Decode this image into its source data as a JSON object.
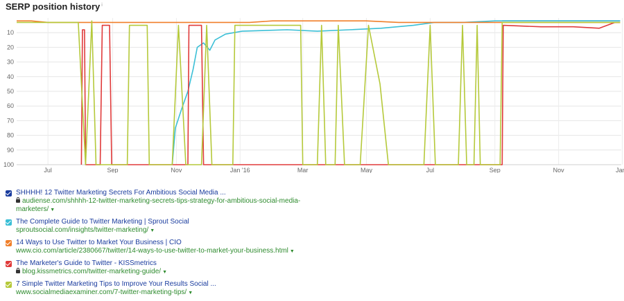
{
  "title": "SERP position history",
  "info_mark": "i",
  "chart_data": {
    "type": "line",
    "ylabel": "",
    "xlabel": "",
    "y_inverted": true,
    "ylim": [
      0,
      100
    ],
    "y_ticks": [
      10,
      20,
      30,
      40,
      50,
      60,
      70,
      80,
      90,
      100
    ],
    "x_range": [
      "2015-06-01",
      "2016-12-31"
    ],
    "x_ticks": [
      {
        "label": "Jul",
        "date": "2015-07-01"
      },
      {
        "label": "Sep",
        "date": "2015-09-01"
      },
      {
        "label": "Nov",
        "date": "2015-11-01"
      },
      {
        "label": "Jan '16",
        "date": "2016-01-01"
      },
      {
        "label": "Mar",
        "date": "2016-03-01"
      },
      {
        "label": "May",
        "date": "2016-05-01"
      },
      {
        "label": "Jul",
        "date": "2016-07-01"
      },
      {
        "label": "Sep",
        "date": "2016-09-01"
      },
      {
        "label": "Nov",
        "date": "2016-11-01"
      },
      {
        "label": "Jan '",
        "date": "2017-01-01"
      }
    ],
    "grid": true,
    "series": [
      {
        "color": "#1a3c9e",
        "points": [
          [
            "2016-09-08",
            2
          ],
          [
            "2016-12-30",
            2
          ]
        ]
      },
      {
        "color": "#3bbfd6",
        "points": [
          [
            "2015-10-28",
            100
          ],
          [
            "2015-10-31",
            75
          ],
          [
            "2015-11-06",
            62
          ],
          [
            "2015-11-12",
            50
          ],
          [
            "2015-11-17",
            35
          ],
          [
            "2015-11-21",
            20
          ],
          [
            "2015-11-27",
            17
          ],
          [
            "2015-12-03",
            22
          ],
          [
            "2015-12-08",
            15
          ],
          [
            "2015-12-18",
            11
          ],
          [
            "2016-01-03",
            9
          ],
          [
            "2016-02-15",
            8
          ],
          [
            "2016-03-15",
            9
          ],
          [
            "2016-04-15",
            8
          ],
          [
            "2016-05-15",
            7
          ],
          [
            "2016-06-15",
            5
          ],
          [
            "2016-07-05",
            3
          ],
          [
            "2016-08-01",
            3
          ],
          [
            "2016-09-01",
            2
          ],
          [
            "2016-12-30",
            2
          ]
        ]
      },
      {
        "color": "#f07f2a",
        "points": [
          [
            "2015-06-01",
            2
          ],
          [
            "2015-06-15",
            2
          ],
          [
            "2015-07-01",
            3
          ],
          [
            "2015-08-01",
            3
          ],
          [
            "2015-09-01",
            3
          ],
          [
            "2015-10-01",
            3
          ],
          [
            "2015-11-01",
            3
          ],
          [
            "2015-12-01",
            3
          ],
          [
            "2016-01-10",
            3
          ],
          [
            "2016-02-01",
            2
          ],
          [
            "2016-03-01",
            2
          ],
          [
            "2016-04-01",
            2
          ],
          [
            "2016-05-01",
            2
          ],
          [
            "2016-06-01",
            3
          ],
          [
            "2016-07-01",
            3
          ],
          [
            "2016-08-01",
            3
          ],
          [
            "2016-09-01",
            3
          ],
          [
            "2016-10-01",
            3
          ],
          [
            "2016-11-01",
            3
          ],
          [
            "2016-12-30",
            3
          ]
        ]
      },
      {
        "color": "#e03a3a",
        "points": [
          [
            "2015-08-02",
            100
          ],
          [
            "2015-08-03",
            8
          ],
          [
            "2015-08-05",
            8
          ],
          [
            "2015-08-06",
            100
          ],
          [
            "2015-08-20",
            100
          ],
          [
            "2015-08-22",
            5
          ],
          [
            "2015-08-29",
            5
          ],
          [
            "2015-08-31",
            100
          ],
          [
            "2015-11-12",
            100
          ],
          [
            "2015-11-13",
            5
          ],
          [
            "2015-11-25",
            5
          ],
          [
            "2015-11-27",
            100
          ],
          [
            "2016-09-08",
            100
          ],
          [
            "2016-09-09",
            5
          ],
          [
            "2016-10-15",
            6
          ],
          [
            "2016-11-15",
            6
          ],
          [
            "2016-12-10",
            7
          ],
          [
            "2016-12-25",
            3
          ],
          [
            "2016-12-30",
            3
          ]
        ]
      },
      {
        "color": "#b5c93a",
        "points": [
          [
            "2015-06-01",
            3
          ],
          [
            "2015-07-30",
            3
          ],
          [
            "2015-08-06",
            100
          ],
          [
            "2015-08-12",
            2
          ],
          [
            "2015-08-16",
            100
          ],
          [
            "2015-09-15",
            100
          ],
          [
            "2015-09-17",
            5
          ],
          [
            "2015-10-04",
            5
          ],
          [
            "2015-10-06",
            100
          ],
          [
            "2015-10-28",
            100
          ],
          [
            "2015-11-03",
            5
          ],
          [
            "2015-11-10",
            100
          ],
          [
            "2015-11-25",
            100
          ],
          [
            "2015-11-30",
            5
          ],
          [
            "2015-12-05",
            100
          ],
          [
            "2015-12-25",
            100
          ],
          [
            "2015-12-27",
            5
          ],
          [
            "2016-02-28",
            5
          ],
          [
            "2016-03-01",
            100
          ],
          [
            "2016-03-15",
            100
          ],
          [
            "2016-03-19",
            5
          ],
          [
            "2016-03-23",
            100
          ],
          [
            "2016-04-01",
            100
          ],
          [
            "2016-04-04",
            5
          ],
          [
            "2016-04-10",
            100
          ],
          [
            "2016-04-25",
            100
          ],
          [
            "2016-05-03",
            5
          ],
          [
            "2016-05-14",
            45
          ],
          [
            "2016-05-22",
            100
          ],
          [
            "2016-06-25",
            100
          ],
          [
            "2016-07-01",
            5
          ],
          [
            "2016-07-06",
            100
          ],
          [
            "2016-07-28",
            100
          ],
          [
            "2016-08-01",
            5
          ],
          [
            "2016-08-05",
            100
          ],
          [
            "2016-08-12",
            100
          ],
          [
            "2016-08-15",
            5
          ],
          [
            "2016-08-18",
            100
          ],
          [
            "2016-09-06",
            100
          ],
          [
            "2016-09-08",
            3
          ],
          [
            "2016-12-30",
            3
          ]
        ]
      }
    ]
  },
  "legend": [
    {
      "color": "#1a3c9e",
      "title": "SHHHH! 12 Twitter Marketing Secrets For Ambitious Social Media ...",
      "secure": true,
      "url_lines": [
        "audiense.com/shhhh-12-twitter-marketing-secrets-tips-strategy-for-ambitious-social-media-",
        "marketers/"
      ]
    },
    {
      "color": "#3bbfd6",
      "title": "The Complete Guide to Twitter Marketing | Sprout Social",
      "secure": false,
      "url_lines": [
        "sproutsocial.com/insights/twitter-marketing/"
      ]
    },
    {
      "color": "#f07f2a",
      "title": "14 Ways to Use Twitter to Market Your Business | CIO",
      "secure": false,
      "url_lines": [
        "www.cio.com/article/2380667/twitter/14-ways-to-use-twitter-to-market-your-business.html"
      ]
    },
    {
      "color": "#e03a3a",
      "title": "The Marketer's Guide to Twitter - KISSmetrics",
      "secure": true,
      "url_lines": [
        "blog.kissmetrics.com/twitter-marketing-guide/"
      ]
    },
    {
      "color": "#b5c93a",
      "title": "7 Simple Twitter Marketing Tips to Improve Your Results Social ...",
      "secure": false,
      "url_lines": [
        "www.socialmediaexaminer.com/7-twitter-marketing-tips/"
      ]
    }
  ]
}
